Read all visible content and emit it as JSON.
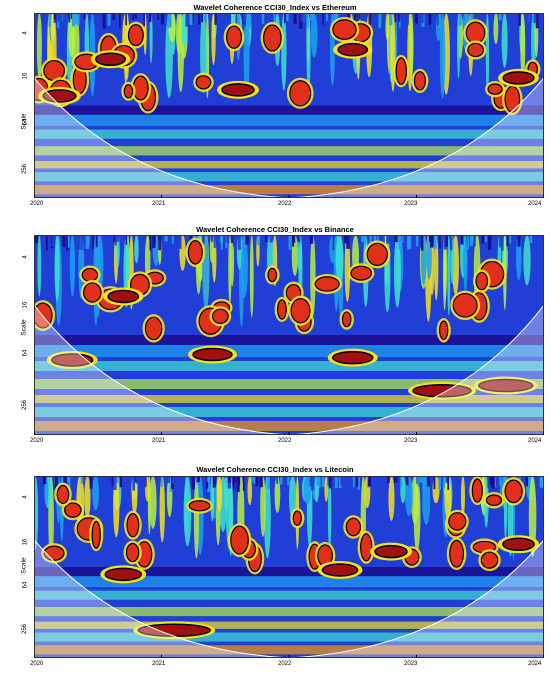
{
  "panels": [
    {
      "title": "Wavelet Coherence CCI30_Index vs  Ethereum",
      "ylabel": "Scale",
      "yticks": [
        "4",
        "16",
        "64",
        "256"
      ],
      "xticks": [
        "2020",
        "2021",
        "2022",
        "2023",
        "2024"
      ]
    },
    {
      "title": "Wavelet Coherence CCI30_Index vs  Binance",
      "ylabel": "Scale",
      "yticks": [
        "4",
        "16",
        "64",
        "256"
      ],
      "xticks": [
        "2020",
        "2021",
        "2022",
        "2023",
        "2024"
      ]
    },
    {
      "title": "Wavelet Coherence CCI30_Index vs  Litecoin",
      "ylabel": "Scale",
      "yticks": [
        "4",
        "16",
        "64",
        "256"
      ],
      "xticks": [
        "2020",
        "2021",
        "2022",
        "2023",
        "2024"
      ]
    }
  ],
  "chart_data": [
    {
      "type": "heatmap",
      "title": "Wavelet Coherence CCI30_Index vs  Ethereum",
      "xlabel": "",
      "ylabel": "Scale",
      "x_range": [
        2020,
        2024
      ],
      "y_scale": "log2-reversed",
      "y_ticks": [
        4,
        16,
        64,
        256
      ],
      "color_scale": [
        "#1a0a8c",
        "#1f3fd6",
        "#1fa0f0",
        "#3fe0d0",
        "#b8f040",
        "#f5e020",
        "#f59a10",
        "#e0301a",
        "#a01010"
      ],
      "significant_regions": [
        {
          "x": 2020.2,
          "scale": 24,
          "coherence": 0.9
        },
        {
          "x": 2020.6,
          "scale": 8,
          "coherence": 0.85
        },
        {
          "x": 2021.6,
          "scale": 20,
          "coherence": 0.9
        },
        {
          "x": 2022.5,
          "scale": 6,
          "coherence": 0.85
        },
        {
          "x": 2023.8,
          "scale": 14,
          "coherence": 0.9
        }
      ]
    },
    {
      "type": "heatmap",
      "title": "Wavelet Coherence CCI30_Index vs  Binance",
      "xlabel": "",
      "ylabel": "Scale",
      "x_range": [
        2020,
        2024
      ],
      "y_scale": "log2-reversed",
      "y_ticks": [
        4,
        16,
        64,
        256
      ],
      "color_scale": [
        "#1a0a8c",
        "#1f3fd6",
        "#1fa0f0",
        "#3fe0d0",
        "#b8f040",
        "#f5e020",
        "#f59a10",
        "#e0301a",
        "#a01010"
      ],
      "significant_regions": [
        {
          "x": 2020.3,
          "scale": 64,
          "coherence": 0.85
        },
        {
          "x": 2020.7,
          "scale": 11,
          "coherence": 0.9
        },
        {
          "x": 2021.4,
          "scale": 55,
          "coherence": 0.85
        },
        {
          "x": 2022.5,
          "scale": 60,
          "coherence": 0.9
        },
        {
          "x": 2023.2,
          "scale": 150,
          "coherence": 0.85
        },
        {
          "x": 2023.7,
          "scale": 130,
          "coherence": 0.85
        }
      ]
    },
    {
      "type": "heatmap",
      "title": "Wavelet Coherence CCI30_Index vs  Litecoin",
      "xlabel": "",
      "ylabel": "Scale",
      "x_range": [
        2020,
        2024
      ],
      "y_scale": "log2-reversed",
      "y_ticks": [
        4,
        16,
        64,
        256
      ],
      "color_scale": [
        "#1a0a8c",
        "#1f3fd6",
        "#1fa0f0",
        "#3fe0d0",
        "#b8f040",
        "#f5e020",
        "#f59a10",
        "#e0301a",
        "#a01010"
      ],
      "significant_regions": [
        {
          "x": 2020.7,
          "scale": 40,
          "coherence": 0.9
        },
        {
          "x": 2021.1,
          "scale": 220,
          "coherence": 0.85
        },
        {
          "x": 2022.4,
          "scale": 35,
          "coherence": 0.95
        },
        {
          "x": 2022.8,
          "scale": 20,
          "coherence": 0.85
        },
        {
          "x": 2023.8,
          "scale": 16,
          "coherence": 0.85
        }
      ]
    }
  ]
}
